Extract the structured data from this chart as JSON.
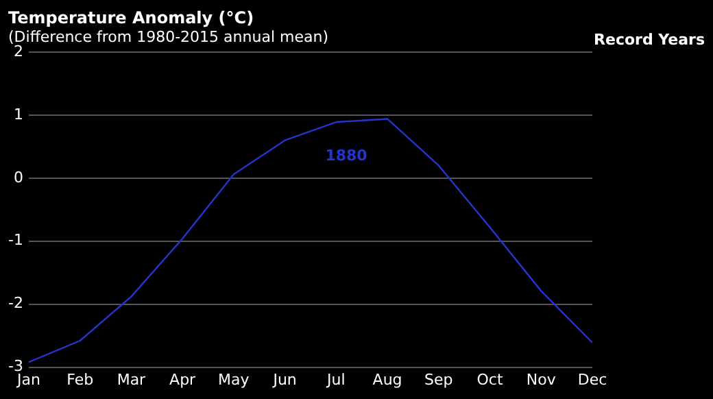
{
  "chart_data": {
    "type": "line",
    "title": "Temperature Anomaly (°C)",
    "subtitle": "(Difference from 1980-2015 annual mean)",
    "legend_title": "Record Years",
    "categories": [
      "Jan",
      "Feb",
      "Mar",
      "Apr",
      "May",
      "Jun",
      "Jul",
      "Aug",
      "Sep",
      "Oct",
      "Nov",
      "Dec"
    ],
    "series": [
      {
        "name": "1880",
        "color": "#2633cc",
        "values": [
          -2.92,
          -2.58,
          -1.88,
          -0.96,
          0.06,
          0.6,
          0.89,
          0.94,
          0.2,
          -0.78,
          -1.79,
          -2.61
        ]
      }
    ],
    "ylim": [
      -3,
      2
    ],
    "yticks": [
      -3,
      -2,
      {
        "value": -1,
        "label": "-1"
      },
      0,
      1,
      2
    ],
    "grid": "y",
    "legend": false,
    "marker": "none",
    "line_style": "solid"
  }
}
